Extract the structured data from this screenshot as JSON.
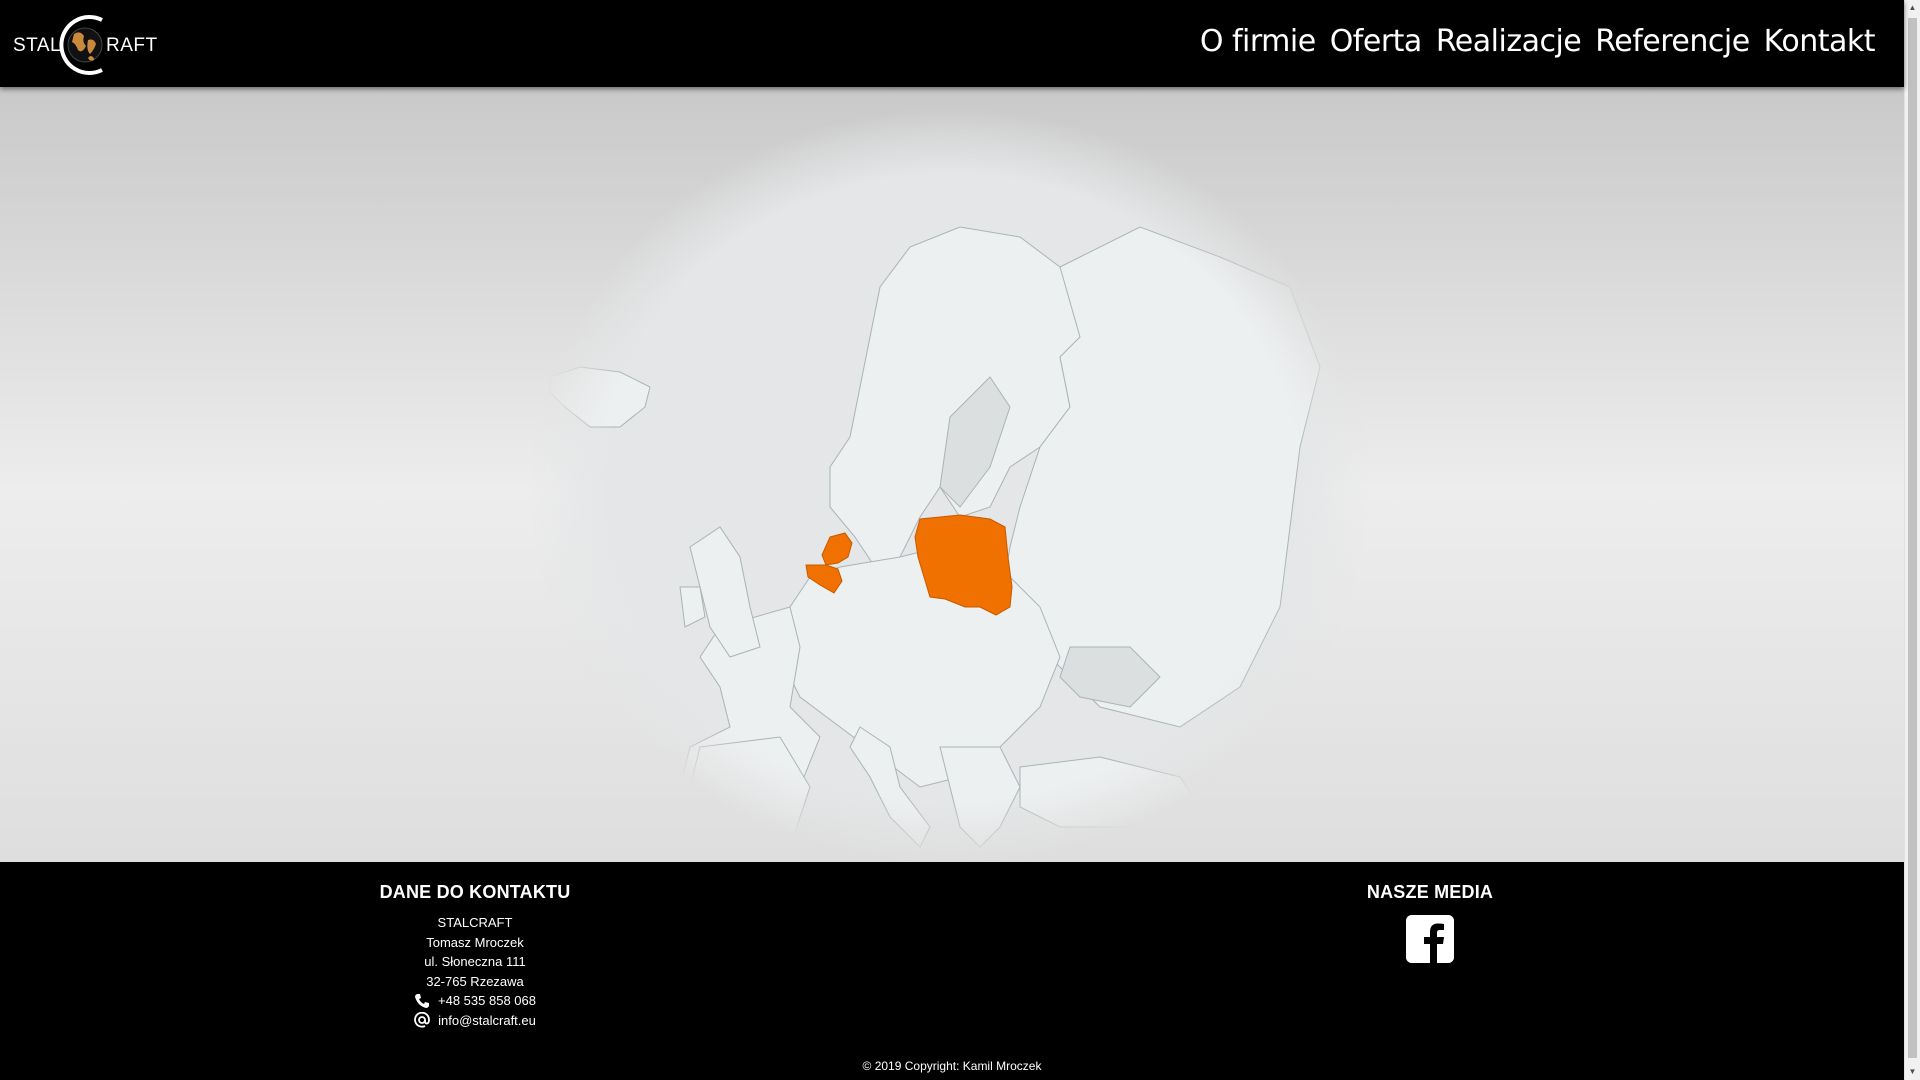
{
  "header": {
    "logo_left": "STAL",
    "logo_right": "RAFT",
    "nav": [
      {
        "label": "O firmie"
      },
      {
        "label": "Oferta"
      },
      {
        "label": "Realizacje"
      },
      {
        "label": "Referencje"
      },
      {
        "label": "Kontakt"
      }
    ]
  },
  "map": {
    "highlight_color": "#f07000",
    "land_color": "#edf0f1",
    "highlighted_countries": [
      "Poland",
      "Netherlands",
      "Belgium"
    ]
  },
  "footer": {
    "contact_heading": "DANE DO KONTAKTU",
    "company": "STALCRAFT",
    "person": "Tomasz Mroczek",
    "street": "ul. Słoneczna 111",
    "city": "32-765 Rzezawa",
    "phone": "+48 535 858 068",
    "email": "info@stalcraft.eu",
    "media_heading": "NASZE MEDIA",
    "copyright": "© 2019 Copyright: Kamil Mroczek"
  },
  "icons": {
    "phone": "phone-icon",
    "email": "at-icon",
    "facebook": "facebook-icon"
  }
}
